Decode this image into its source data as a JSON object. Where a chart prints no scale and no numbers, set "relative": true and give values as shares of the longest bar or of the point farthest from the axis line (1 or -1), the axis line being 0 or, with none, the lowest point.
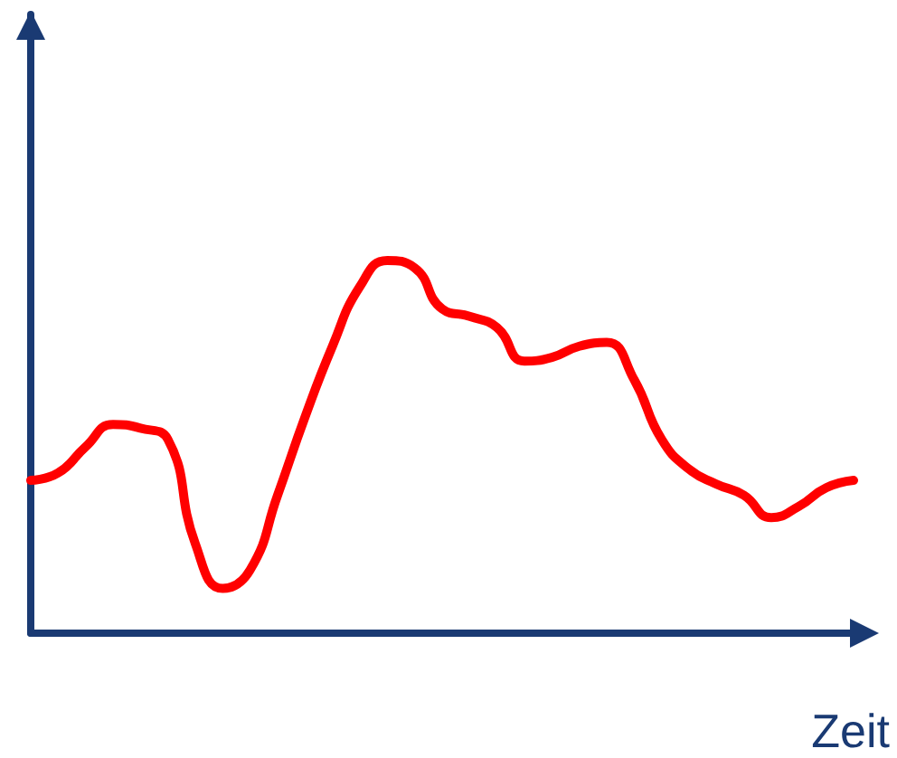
{
  "chart_data": {
    "type": "line",
    "relative": true,
    "xlabel": "Zeit",
    "categories": [
      null,
      null,
      null,
      null,
      null,
      null,
      null,
      null,
      null,
      null,
      null,
      null,
      null,
      null,
      null,
      null,
      null,
      null,
      null,
      null,
      null,
      null,
      null,
      null,
      null,
      null,
      null,
      null,
      null,
      null,
      null
    ],
    "series": [
      {
        "color": "#ff0000",
        "values": [
          0.41,
          0.43,
          0.5,
          0.56,
          0.55,
          0.52,
          0.24,
          0.12,
          0.17,
          0.37,
          0.58,
          0.77,
          0.93,
          1.0,
          0.98,
          0.87,
          0.85,
          0.82,
          0.73,
          0.74,
          0.77,
          0.78,
          0.68,
          0.52,
          0.44,
          0.4,
          0.37,
          0.31,
          0.34,
          0.39,
          0.41
        ]
      }
    ],
    "grid": false,
    "marker": "none",
    "line_style": "solid"
  }
}
